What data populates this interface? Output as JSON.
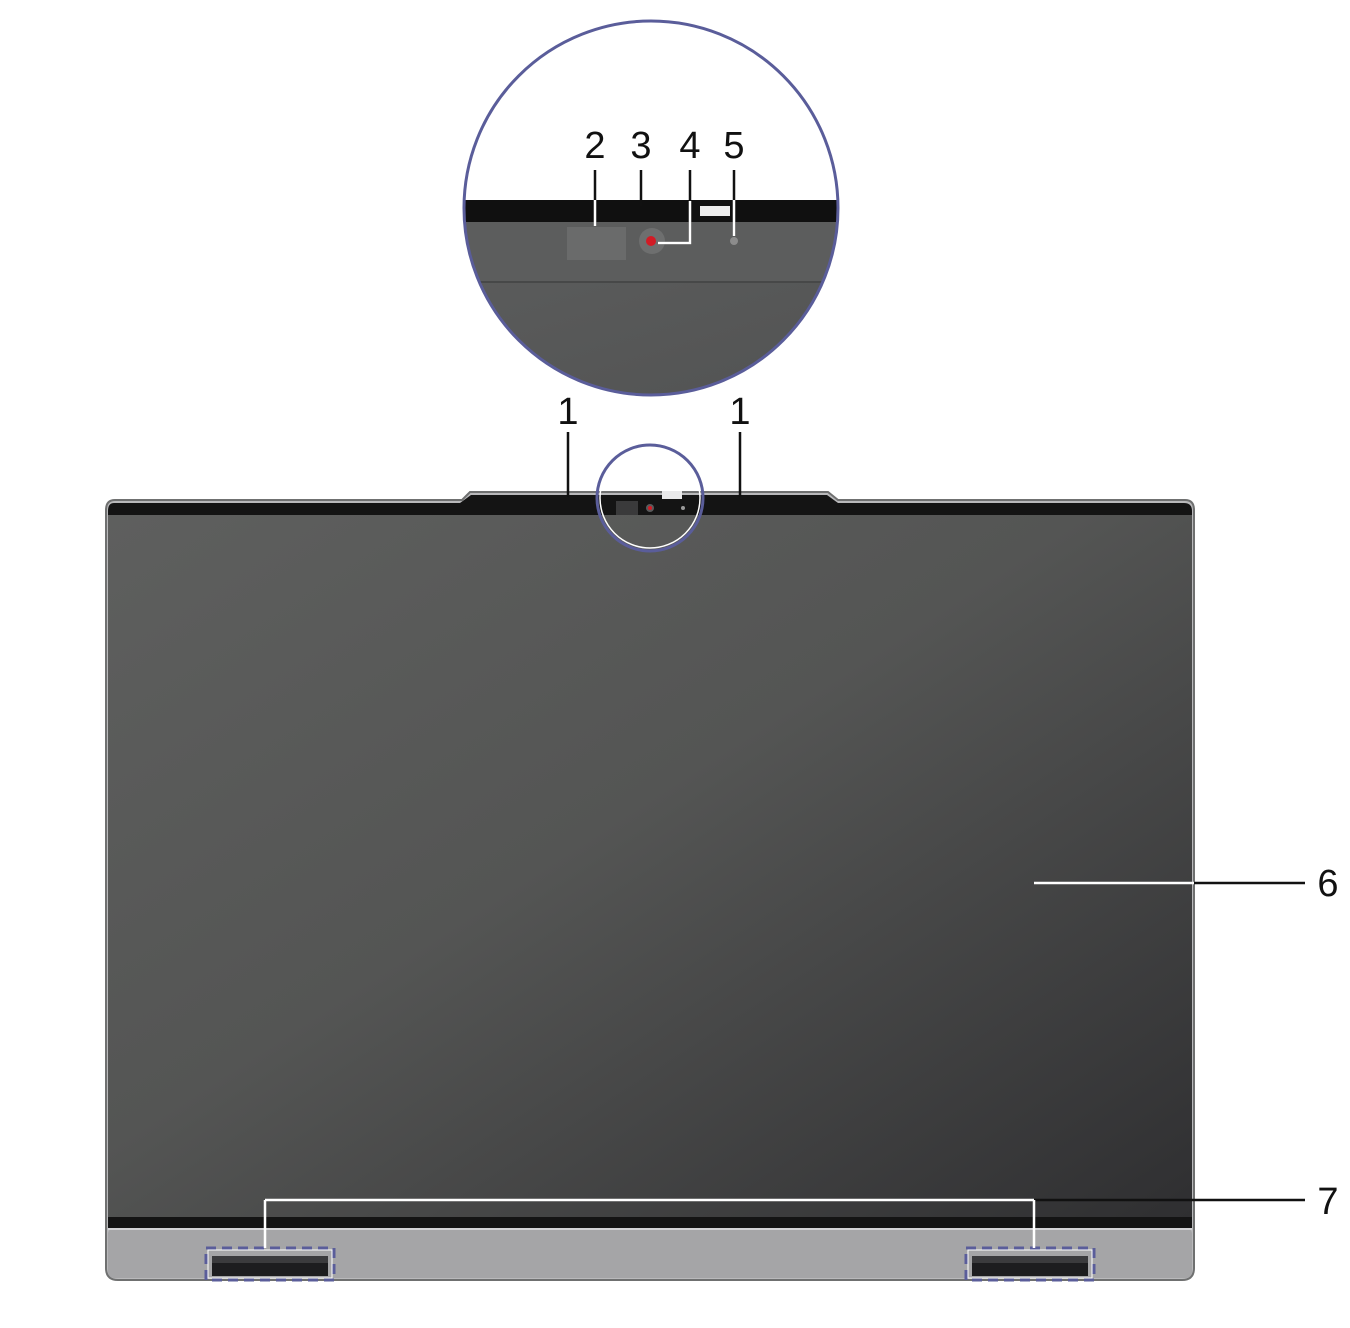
{
  "callouts": {
    "c1_left": "1",
    "c1_right": "1",
    "c2": "2",
    "c3": "3",
    "c4": "4",
    "c5": "5",
    "c6": "6",
    "c7": "7"
  },
  "colors": {
    "outline": "#5a5d9a",
    "screen_light": "#646664",
    "screen_dark": "#3a3a3c",
    "bezel": "#111111",
    "hinge": "#a7a7a9",
    "camera_lens": "#d21b25"
  }
}
